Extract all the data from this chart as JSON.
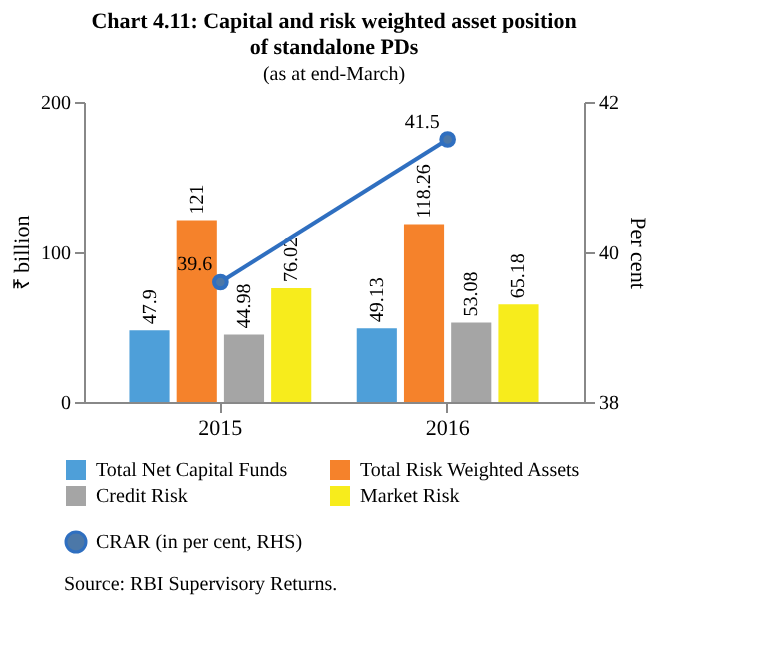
{
  "chart_data": {
    "type": "bar",
    "title": "Chart 4.11: Capital and risk weighted asset position of standalone PDs",
    "subtitle": "(as at end-March)",
    "ylabel": "₹ billion",
    "y2label": "Per cent",
    "categories": [
      "2015",
      "2016"
    ],
    "series": [
      {
        "name": "Total Net Capital Funds",
        "color": "#4e9fd9",
        "values": [
          47.9,
          49.13
        ]
      },
      {
        "name": "Total Risk Weighted Assets",
        "color": "#f5822b",
        "values": [
          121,
          118.26
        ]
      },
      {
        "name": "Credit Risk",
        "color": "#a5a5a5",
        "values": [
          44.98,
          53.08
        ]
      },
      {
        "name": "Market Risk",
        "color": "#f7ec1c",
        "values": [
          76.02,
          65.18
        ]
      },
      {
        "name": "CRAR (in per cent, RHS)",
        "type": "line",
        "axis": "y2",
        "color": "#2f6fc0",
        "values": [
          39.6,
          41.5
        ],
        "marker": "circle"
      }
    ],
    "ylim": [
      0,
      200
    ],
    "yticks": [
      0,
      100,
      200
    ],
    "y2lim": [
      38,
      42
    ],
    "y2ticks": [
      38,
      40,
      42
    ],
    "data_labels": true,
    "grid": false,
    "legend": "bottom",
    "annotations": [
      "Source: RBI Supervisory Returns."
    ]
  }
}
